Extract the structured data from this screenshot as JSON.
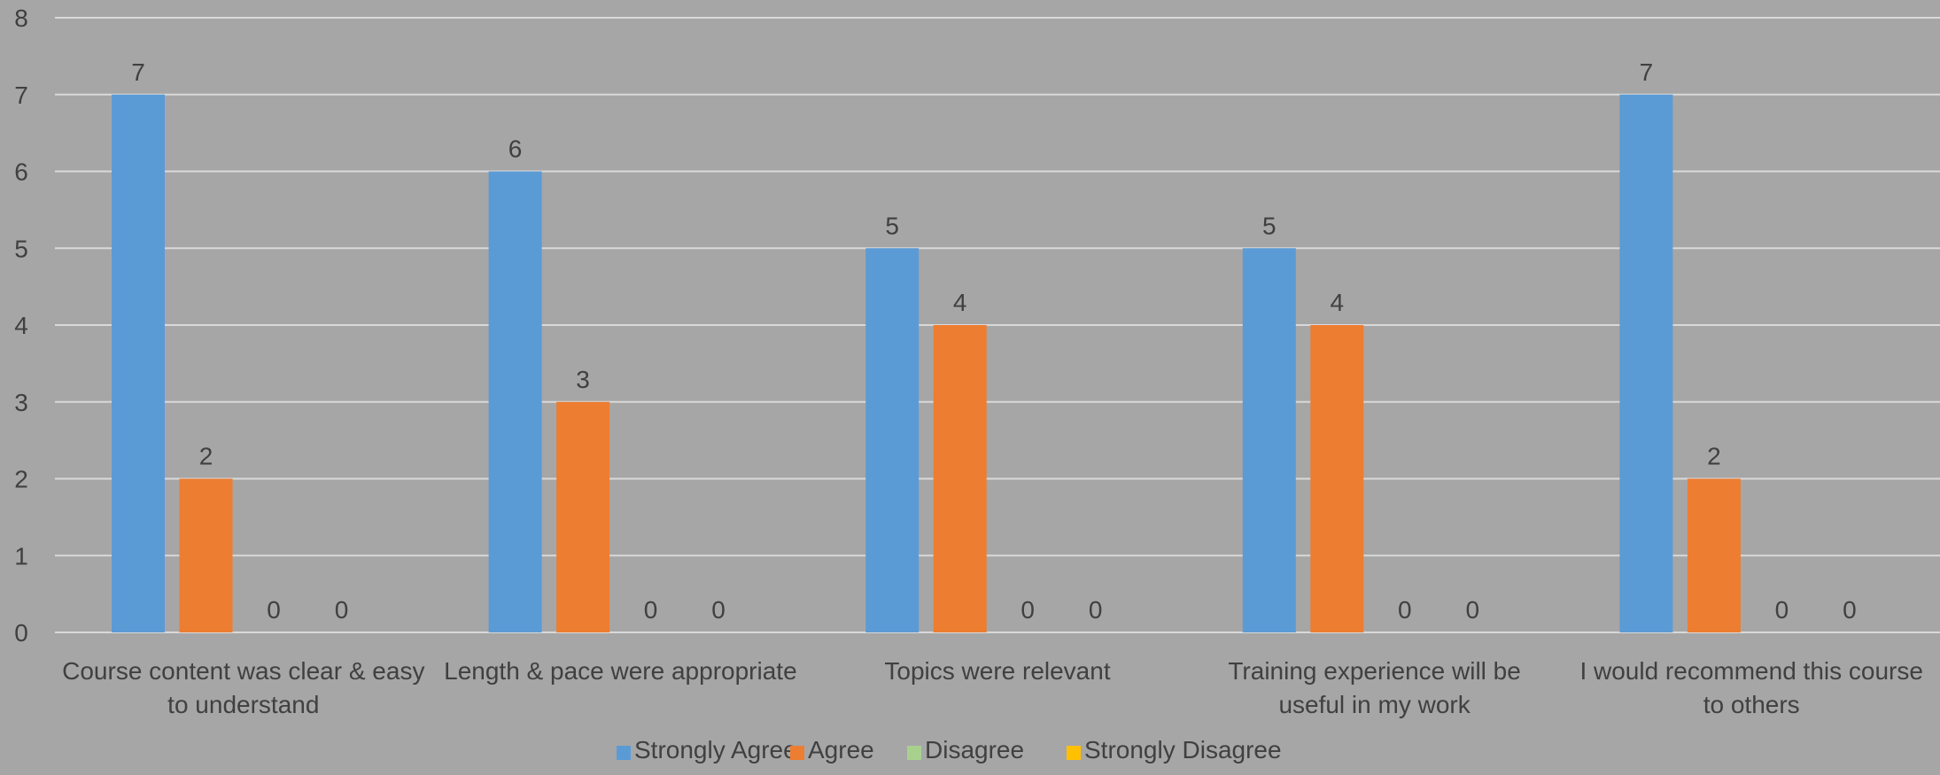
{
  "chart_data": {
    "type": "bar",
    "title": "",
    "xlabel": "",
    "ylabel": "",
    "ylim": [
      0,
      8
    ],
    "yticks": [
      0,
      1,
      2,
      3,
      4,
      5,
      6,
      7,
      8
    ],
    "grid": true,
    "legend_position": "bottom",
    "categories": [
      [
        "Course content was clear & easy",
        "to understand"
      ],
      [
        "Length & pace were appropriate"
      ],
      [
        "Topics were relevant"
      ],
      [
        "Training experience will be",
        "useful in my work"
      ],
      [
        "I would recommend this course",
        "to others"
      ]
    ],
    "series": [
      {
        "name": "Strongly Agree",
        "color": "#5b9bd5",
        "values": [
          7,
          6,
          5,
          5,
          7
        ]
      },
      {
        "name": "Agree",
        "color": "#ed7d31",
        "values": [
          2,
          3,
          4,
          4,
          2
        ]
      },
      {
        "name": "Disagree",
        "color": "#a9d18e",
        "values": [
          0,
          0,
          0,
          0,
          0
        ]
      },
      {
        "name": "Strongly Disagree",
        "color": "#ffc000",
        "values": [
          0,
          0,
          0,
          0,
          0
        ]
      }
    ],
    "colors": {
      "background": "#a6a6a6",
      "gridline": "#d9d9d9",
      "text": "#404040"
    }
  }
}
